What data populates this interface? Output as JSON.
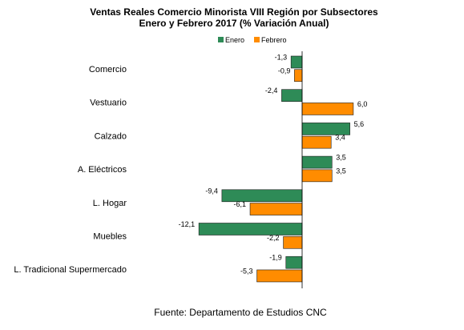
{
  "chart_data": {
    "type": "bar",
    "orientation": "horizontal",
    "title": "Ventas Reales Comercio Minorista VIII Región por Subsectores",
    "subtitle": "Enero y Febrero 2017 (% Variación Anual)",
    "categories": [
      "Comercio",
      "Vestuario",
      "Calzado",
      "A. Eléctricos",
      "L. Hogar",
      "Muebles",
      "L. Tradicional Supermercado"
    ],
    "series": [
      {
        "name": "Enero",
        "color": "#2e8b57",
        "values": [
          -1.3,
          -2.4,
          5.6,
          3.5,
          -9.4,
          -12.1,
          -1.9
        ],
        "labels": [
          "-1,3",
          "-2,4",
          "5,6",
          "3,5",
          "-9,4",
          "-12,1",
          "-1,9"
        ]
      },
      {
        "name": "Febrero",
        "color": "#ff8c00",
        "values": [
          -0.9,
          6.0,
          3.4,
          3.5,
          -6.1,
          -2.2,
          -5.3
        ],
        "labels": [
          "-0,9",
          "6,0",
          "3,4",
          "3,5",
          "-6,1",
          "-2,2",
          "-5,3"
        ]
      }
    ],
    "legend_position": "top-right",
    "grid": false,
    "xlim": [
      -12.1,
      6.0
    ]
  },
  "footer": "Fuente: Departamento de Estudios CNC"
}
